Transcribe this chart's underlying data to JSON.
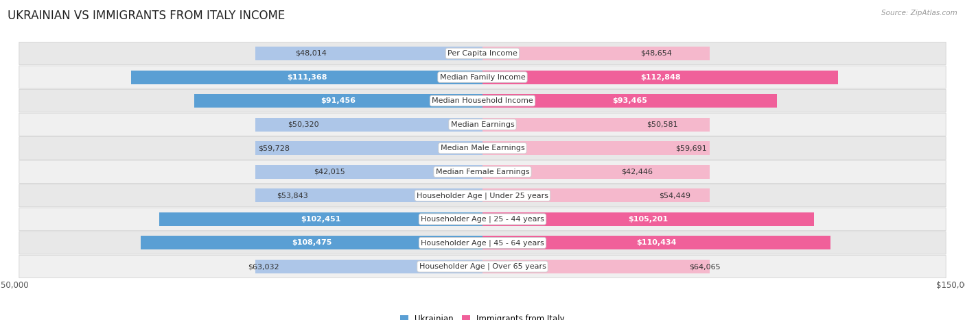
{
  "title": "UKRAINIAN VS IMMIGRANTS FROM ITALY INCOME",
  "source": "Source: ZipAtlas.com",
  "categories": [
    "Per Capita Income",
    "Median Family Income",
    "Median Household Income",
    "Median Earnings",
    "Median Male Earnings",
    "Median Female Earnings",
    "Householder Age | Under 25 years",
    "Householder Age | 25 - 44 years",
    "Householder Age | 45 - 64 years",
    "Householder Age | Over 65 years"
  ],
  "ukrainian_values": [
    48014,
    111368,
    91456,
    50320,
    59728,
    42015,
    53843,
    102451,
    108475,
    63032
  ],
  "italy_values": [
    48654,
    112848,
    93465,
    50581,
    59691,
    42446,
    54449,
    105201,
    110434,
    64065
  ],
  "ukrainian_labels": [
    "$48,014",
    "$111,368",
    "$91,456",
    "$50,320",
    "$59,728",
    "$42,015",
    "$53,843",
    "$102,451",
    "$108,475",
    "$63,032"
  ],
  "italy_labels": [
    "$48,654",
    "$112,848",
    "$93,465",
    "$50,581",
    "$59,691",
    "$42,446",
    "$54,449",
    "$105,201",
    "$110,434",
    "$64,065"
  ],
  "max_value": 150000,
  "ukrainian_color_light": "#adc6e8",
  "ukrainian_color_dark": "#5a9fd4",
  "italy_color_light": "#f5b8cc",
  "italy_color_dark": "#f0609a",
  "bar_height": 0.58,
  "background_color": "#ffffff",
  "row_bg_light": "#eeeeee",
  "row_bg_white": "#f8f8f8",
  "title_fontsize": 12,
  "label_fontsize": 8,
  "category_fontsize": 8,
  "axis_fontsize": 8.5,
  "legend_fontsize": 8.5,
  "inside_label_threshold": 65000
}
